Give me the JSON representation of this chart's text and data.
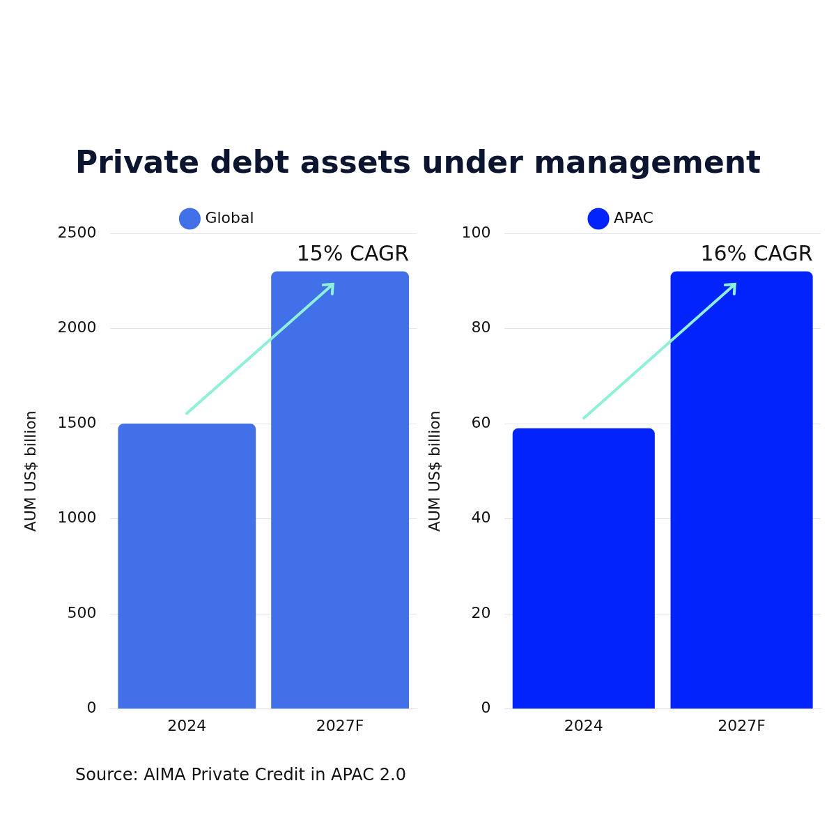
{
  "chart_data": [
    {
      "type": "bar",
      "title": "Private debt assets under management",
      "categories": [
        "2024",
        "2027F"
      ],
      "ylabel": "AUM US$ billion",
      "ylim": [
        0,
        2500
      ],
      "yticks": [
        0,
        500,
        1000,
        1500,
        2000,
        2500
      ],
      "grid": "y",
      "legend": "top",
      "series": [
        {
          "name": "Global",
          "color": "#4270e8",
          "values": [
            1500,
            2300
          ]
        }
      ],
      "annotations": [
        {
          "text": "15% CAGR",
          "x": "2027F",
          "y": 2300
        }
      ]
    },
    {
      "type": "bar",
      "categories": [
        "2024",
        "2027F"
      ],
      "ylabel": "AUM US$ billion",
      "ylim": [
        0,
        100
      ],
      "yticks": [
        0,
        20,
        40,
        60,
        80,
        100
      ],
      "grid": "y",
      "legend": "top",
      "series": [
        {
          "name": "APAC",
          "color": "#0323fc",
          "values": [
            59,
            92
          ]
        }
      ],
      "annotations": [
        {
          "text": "16% CAGR",
          "x": "2027F",
          "y": 92
        },
        "Source: AIMA Private Credit in APAC 2.0"
      ]
    }
  ]
}
